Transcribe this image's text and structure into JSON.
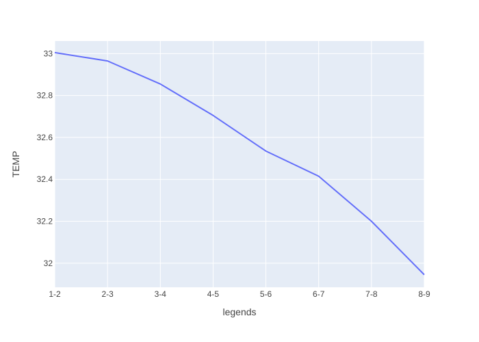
{
  "chart_data": {
    "type": "line",
    "title": "",
    "xlabel": "legends",
    "ylabel": "TEMP",
    "categories": [
      "1-2",
      "2-3",
      "3-4",
      "4-5",
      "5-6",
      "6-7",
      "7-8",
      "8-9"
    ],
    "series": [
      {
        "values": [
          33.005,
          32.965,
          32.855,
          32.705,
          32.535,
          32.415,
          32.2,
          31.945
        ]
      }
    ],
    "ylim": [
      31.885,
      33.06
    ],
    "yticks": [
      32,
      32.2,
      32.4,
      32.6,
      32.8,
      33
    ],
    "ytick_labels": [
      "32",
      "32.2",
      "32.4",
      "32.6",
      "32.8",
      "33"
    ],
    "grid": true,
    "colors": {
      "plot_background": "#e5ecf6",
      "grid": "#ffffff",
      "line": "#636efa",
      "text": "#444444"
    }
  }
}
